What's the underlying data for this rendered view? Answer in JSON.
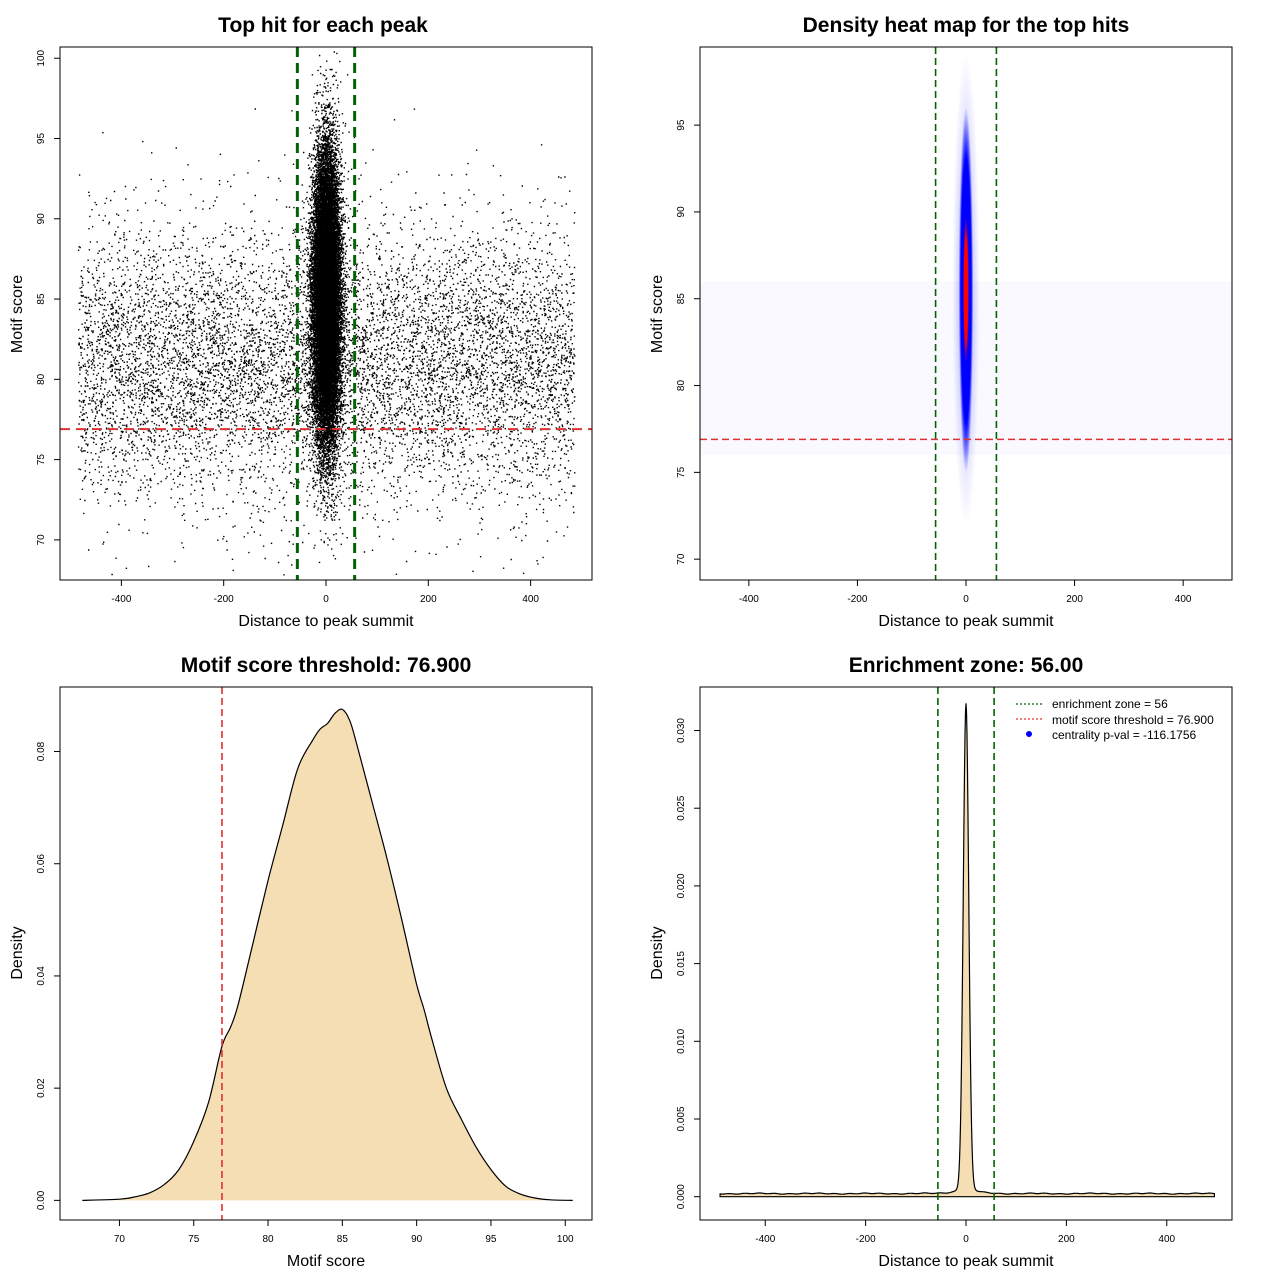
{
  "chart_data": [
    {
      "id": "p1",
      "type": "scatter",
      "title": "Top hit for each peak",
      "xlabel": "Distance to peak summit",
      "ylabel": "Motif score",
      "xlim": [
        -520,
        520
      ],
      "ylim": [
        67.5,
        100.7
      ],
      "xticks": [
        -400,
        -200,
        0,
        200,
        400
      ],
      "yticks": [
        70,
        75,
        80,
        85,
        90,
        95,
        100
      ],
      "background": {
        "x_range": [
          -485,
          485
        ],
        "center": 81,
        "spread": 4.2,
        "count": 9000
      },
      "core": {
        "x_center": 0,
        "x_spread": 13,
        "y_center": 85,
        "y_spread": 4.4,
        "count": 24000
      },
      "vlines": [
        -56,
        56
      ],
      "hline": 76.9,
      "colors": {
        "points": "#000000",
        "vline": "#006400",
        "hline": "#e03030"
      }
    },
    {
      "id": "p2",
      "type": "heatmap",
      "title": "Density heat map for the top hits",
      "xlabel": "Distance to peak summit",
      "ylabel": "Motif score",
      "xlim": [
        -490,
        490
      ],
      "ylim": [
        68.8,
        99.5
      ],
      "xticks": [
        -400,
        -200,
        0,
        200,
        400
      ],
      "yticks": [
        70,
        75,
        80,
        85,
        90,
        95
      ],
      "hotspot": {
        "x_center": 0,
        "y_center": 85.5,
        "x_spread": 7,
        "y_spread": 4.4
      },
      "vlines": [
        -56,
        56
      ],
      "hline": 76.9,
      "colors": {
        "low": "#ffffff",
        "mid": "#0000ff",
        "high": "#ff0000",
        "vline": "#006400",
        "hline": "#e03030"
      }
    },
    {
      "id": "p3",
      "type": "area",
      "title": "Motif score threshold: 76.900",
      "xlabel": "Motif score",
      "ylabel": "Density",
      "xlim": [
        66,
        101.8
      ],
      "ylim": [
        -0.0035,
        0.0915
      ],
      "xticks": [
        70,
        75,
        80,
        85,
        90,
        95,
        100
      ],
      "yticks": [
        0.0,
        0.02,
        0.04,
        0.06,
        0.08
      ],
      "ytick_labels": [
        "0.00",
        "0.02",
        "0.04",
        "0.06",
        "0.08"
      ],
      "x": [
        67.5,
        70,
        71,
        72,
        73,
        74,
        75,
        76,
        76.9,
        77.5,
        78,
        79,
        80,
        81,
        82,
        83,
        83.5,
        84,
        84.5,
        85,
        85.5,
        86,
        87,
        88,
        89,
        90,
        90.5,
        91,
        92,
        93,
        94,
        95,
        96,
        97,
        98,
        99,
        100.5
      ],
      "y": [
        0.0,
        0.0002,
        0.0006,
        0.0013,
        0.0028,
        0.0055,
        0.0105,
        0.0175,
        0.0275,
        0.031,
        0.035,
        0.046,
        0.057,
        0.067,
        0.077,
        0.082,
        0.084,
        0.085,
        0.0868,
        0.0875,
        0.0855,
        0.081,
        0.071,
        0.061,
        0.05,
        0.0385,
        0.034,
        0.029,
        0.02,
        0.0145,
        0.0095,
        0.0055,
        0.0025,
        0.0011,
        0.0004,
        0.0001,
        0.0
      ],
      "vline": 76.9,
      "colors": {
        "fill": "#f5deb3",
        "line": "#000000",
        "vline": "#e03030"
      }
    },
    {
      "id": "p4",
      "type": "area",
      "title": "Enrichment zone: 56.00",
      "xlabel": "Distance to peak summit",
      "ylabel": "Density",
      "xlim": [
        -530,
        530
      ],
      "ylim": [
        -0.0015,
        0.0328
      ],
      "xticks": [
        -400,
        -200,
        0,
        200,
        400
      ],
      "yticks": [
        0.0,
        0.005,
        0.01,
        0.015,
        0.02,
        0.025,
        0.03
      ],
      "ytick_labels": [
        "0.000",
        "0.005",
        "0.010",
        "0.015",
        "0.020",
        "0.025",
        "0.030"
      ],
      "baseline_density": 0.0002,
      "peak": {
        "center": 0,
        "spread": 5.5,
        "height": 0.031
      },
      "x_range": [
        -490,
        495
      ],
      "vlines": [
        -56,
        56
      ],
      "colors": {
        "fill": "#f5deb3",
        "line": "#000000",
        "vline": "#006400"
      },
      "legend": [
        {
          "label": "enrichment zone = 56",
          "symbol": "dotted",
          "color": "#006400"
        },
        {
          "label": "motif score threshold = 76.900",
          "symbol": "dotted",
          "color": "#e03030"
        },
        {
          "label": "centrality p-val = -116.1756",
          "symbol": "point",
          "color": "#0000ff"
        }
      ]
    }
  ]
}
